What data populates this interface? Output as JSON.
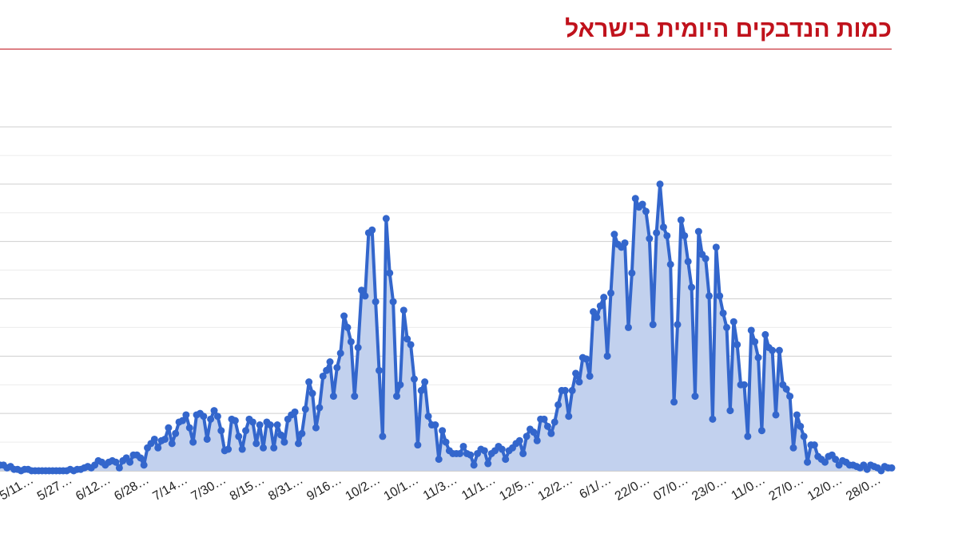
{
  "header": {
    "title": "כמות הנדבקים היומית בישראל"
  },
  "colors": {
    "title": "#c0121c",
    "line": "#3366cc",
    "area": "#c2d1ee",
    "grid": "#d9d9d9"
  },
  "chart_data": {
    "type": "area",
    "title": "כמות הנדבקים היומית בישראל",
    "xlabel": "",
    "ylabel": "",
    "grid": true,
    "legend": "none",
    "ylim": [
      0,
      12.5
    ],
    "x_tick_labels": [
      "5/11…",
      "5/27…",
      "6/12…",
      "6/28…",
      "7/14…",
      "7/30…",
      "8/15…",
      "8/31…",
      "9/16…",
      "10/2…",
      "10/1…",
      "11/3…",
      "11/1…",
      "12/5…",
      "12/2…",
      "6/1/…",
      "22/0…",
      "07/0…",
      "23/0…",
      "11/0…",
      "27/0…",
      "12/0…",
      "28/0…"
    ],
    "series": [
      {
        "values": [
          0.2,
          0.2,
          0.1,
          0.15,
          0.05,
          0.05,
          0.0,
          0.05,
          0.05,
          0.0,
          0.0,
          0.0,
          0.0,
          0.0,
          0.0,
          0.0,
          0.0,
          0.0,
          0.0,
          0.0,
          0.05,
          0.0,
          0.05,
          0.05,
          0.1,
          0.15,
          0.1,
          0.2,
          0.35,
          0.3,
          0.2,
          0.3,
          0.35,
          0.3,
          0.1,
          0.35,
          0.45,
          0.3,
          0.55,
          0.55,
          0.45,
          0.2,
          0.8,
          0.95,
          1.1,
          0.8,
          1.05,
          1.1,
          1.5,
          0.95,
          1.3,
          1.7,
          1.75,
          1.95,
          1.5,
          1.0,
          1.95,
          2.0,
          1.9,
          1.1,
          1.8,
          2.1,
          1.9,
          1.4,
          0.7,
          0.75,
          1.8,
          1.75,
          1.2,
          0.75,
          1.4,
          1.8,
          1.7,
          0.95,
          1.6,
          0.8,
          1.7,
          1.6,
          0.8,
          1.6,
          1.25,
          1.0,
          1.8,
          1.95,
          2.05,
          0.95,
          1.3,
          2.15,
          3.1,
          2.7,
          1.5,
          2.2,
          3.3,
          3.5,
          3.8,
          2.6,
          3.6,
          4.1,
          5.4,
          5.0,
          4.5,
          2.6,
          4.3,
          6.3,
          6.1,
          8.3,
          8.4,
          5.9,
          3.5,
          1.2,
          8.8,
          6.9,
          5.9,
          2.6,
          3.0,
          5.6,
          4.6,
          4.4,
          3.2,
          0.9,
          2.8,
          3.1,
          1.9,
          1.6,
          1.6,
          0.4,
          1.4,
          1.0,
          0.7,
          0.6,
          0.6,
          0.6,
          0.85,
          0.6,
          0.55,
          0.2,
          0.6,
          0.75,
          0.7,
          0.25,
          0.6,
          0.7,
          0.85,
          0.75,
          0.4,
          0.7,
          0.8,
          0.95,
          1.05,
          0.6,
          1.2,
          1.45,
          1.35,
          1.05,
          1.8,
          1.8,
          1.55,
          1.3,
          1.7,
          2.3,
          2.8,
          2.8,
          1.9,
          2.8,
          3.4,
          3.1,
          3.95,
          3.9,
          3.3,
          5.55,
          5.35,
          5.75,
          6.05,
          4.0,
          6.2,
          8.25,
          7.9,
          7.8,
          7.95,
          5.0,
          6.9,
          9.5,
          9.2,
          9.3,
          9.05,
          8.1,
          5.1,
          8.3,
          10.0,
          8.5,
          8.2,
          7.2,
          2.4,
          5.1,
          8.75,
          8.2,
          7.3,
          6.4,
          2.6,
          8.35,
          7.55,
          7.4,
          6.1,
          1.8,
          7.8,
          6.1,
          5.5,
          5.0,
          2.1,
          5.2,
          4.4,
          3.0,
          3.0,
          1.2,
          4.9,
          4.5,
          3.95,
          1.4,
          4.75,
          4.3,
          4.2,
          1.95,
          4.2,
          3.0,
          2.85,
          2.6,
          0.8,
          1.95,
          1.55,
          1.2,
          0.3,
          0.9,
          0.9,
          0.5,
          0.4,
          0.3,
          0.5,
          0.55,
          0.4,
          0.2,
          0.35,
          0.3,
          0.2,
          0.2,
          0.15,
          0.1,
          0.2,
          0.05,
          0.2,
          0.15,
          0.1,
          0.0,
          0.15,
          0.1,
          0.1
        ]
      }
    ]
  }
}
